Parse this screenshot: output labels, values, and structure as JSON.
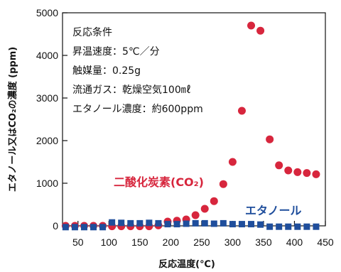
{
  "chart_data": {
    "type": "scatter",
    "xlabel": "反応温度(℃)",
    "ylabel": "エタノール又はCO₂の濃度 (ppm)",
    "xlim": [
      25,
      450
    ],
    "ylim": [
      0,
      5000
    ],
    "x_ticks": [
      50,
      100,
      150,
      200,
      250,
      300,
      350,
      400,
      450
    ],
    "y_ticks": [
      0,
      1000,
      2000,
      3000,
      4000,
      5000
    ],
    "grid": false,
    "conditions": [
      "反応条件",
      "昇温速度：5℃／分",
      "触媒量：0.25g",
      "流通ガス：乾燥空気100㎖",
      "エタノール濃度：約600ppm"
    ],
    "series": [
      {
        "name": "二酸化炭素(CO₂)",
        "marker": "circle",
        "color": "#d7263d",
        "points": [
          [
            30,
            0
          ],
          [
            45,
            0
          ],
          [
            60,
            0
          ],
          [
            75,
            0
          ],
          [
            90,
            0
          ],
          [
            105,
            -10
          ],
          [
            120,
            -10
          ],
          [
            135,
            -10
          ],
          [
            150,
            -10
          ],
          [
            165,
            -10
          ],
          [
            180,
            10
          ],
          [
            195,
            100
          ],
          [
            210,
            120
          ],
          [
            225,
            150
          ],
          [
            240,
            250
          ],
          [
            255,
            400
          ],
          [
            270,
            580
          ],
          [
            285,
            980
          ],
          [
            300,
            1500
          ],
          [
            315,
            2700
          ],
          [
            330,
            4700
          ],
          [
            345,
            4580
          ],
          [
            360,
            2030
          ],
          [
            375,
            1420
          ],
          [
            390,
            1300
          ],
          [
            405,
            1260
          ],
          [
            420,
            1240
          ],
          [
            435,
            1210
          ]
        ]
      },
      {
        "name": "エタノール",
        "marker": "square",
        "color": "#1f4e9c",
        "points": [
          [
            30,
            -30
          ],
          [
            45,
            -30
          ],
          [
            60,
            -30
          ],
          [
            75,
            -30
          ],
          [
            90,
            -30
          ],
          [
            105,
            80
          ],
          [
            120,
            70
          ],
          [
            135,
            60
          ],
          [
            150,
            60
          ],
          [
            165,
            70
          ],
          [
            180,
            60
          ],
          [
            195,
            40
          ],
          [
            210,
            40
          ],
          [
            225,
            50
          ],
          [
            240,
            60
          ],
          [
            255,
            60
          ],
          [
            270,
            50
          ],
          [
            285,
            60
          ],
          [
            300,
            40
          ],
          [
            315,
            40
          ],
          [
            330,
            40
          ],
          [
            345,
            30
          ],
          [
            360,
            -20
          ],
          [
            375,
            -20
          ],
          [
            390,
            -20
          ],
          [
            405,
            -20
          ],
          [
            420,
            -20
          ],
          [
            435,
            -20
          ]
        ]
      }
    ]
  }
}
